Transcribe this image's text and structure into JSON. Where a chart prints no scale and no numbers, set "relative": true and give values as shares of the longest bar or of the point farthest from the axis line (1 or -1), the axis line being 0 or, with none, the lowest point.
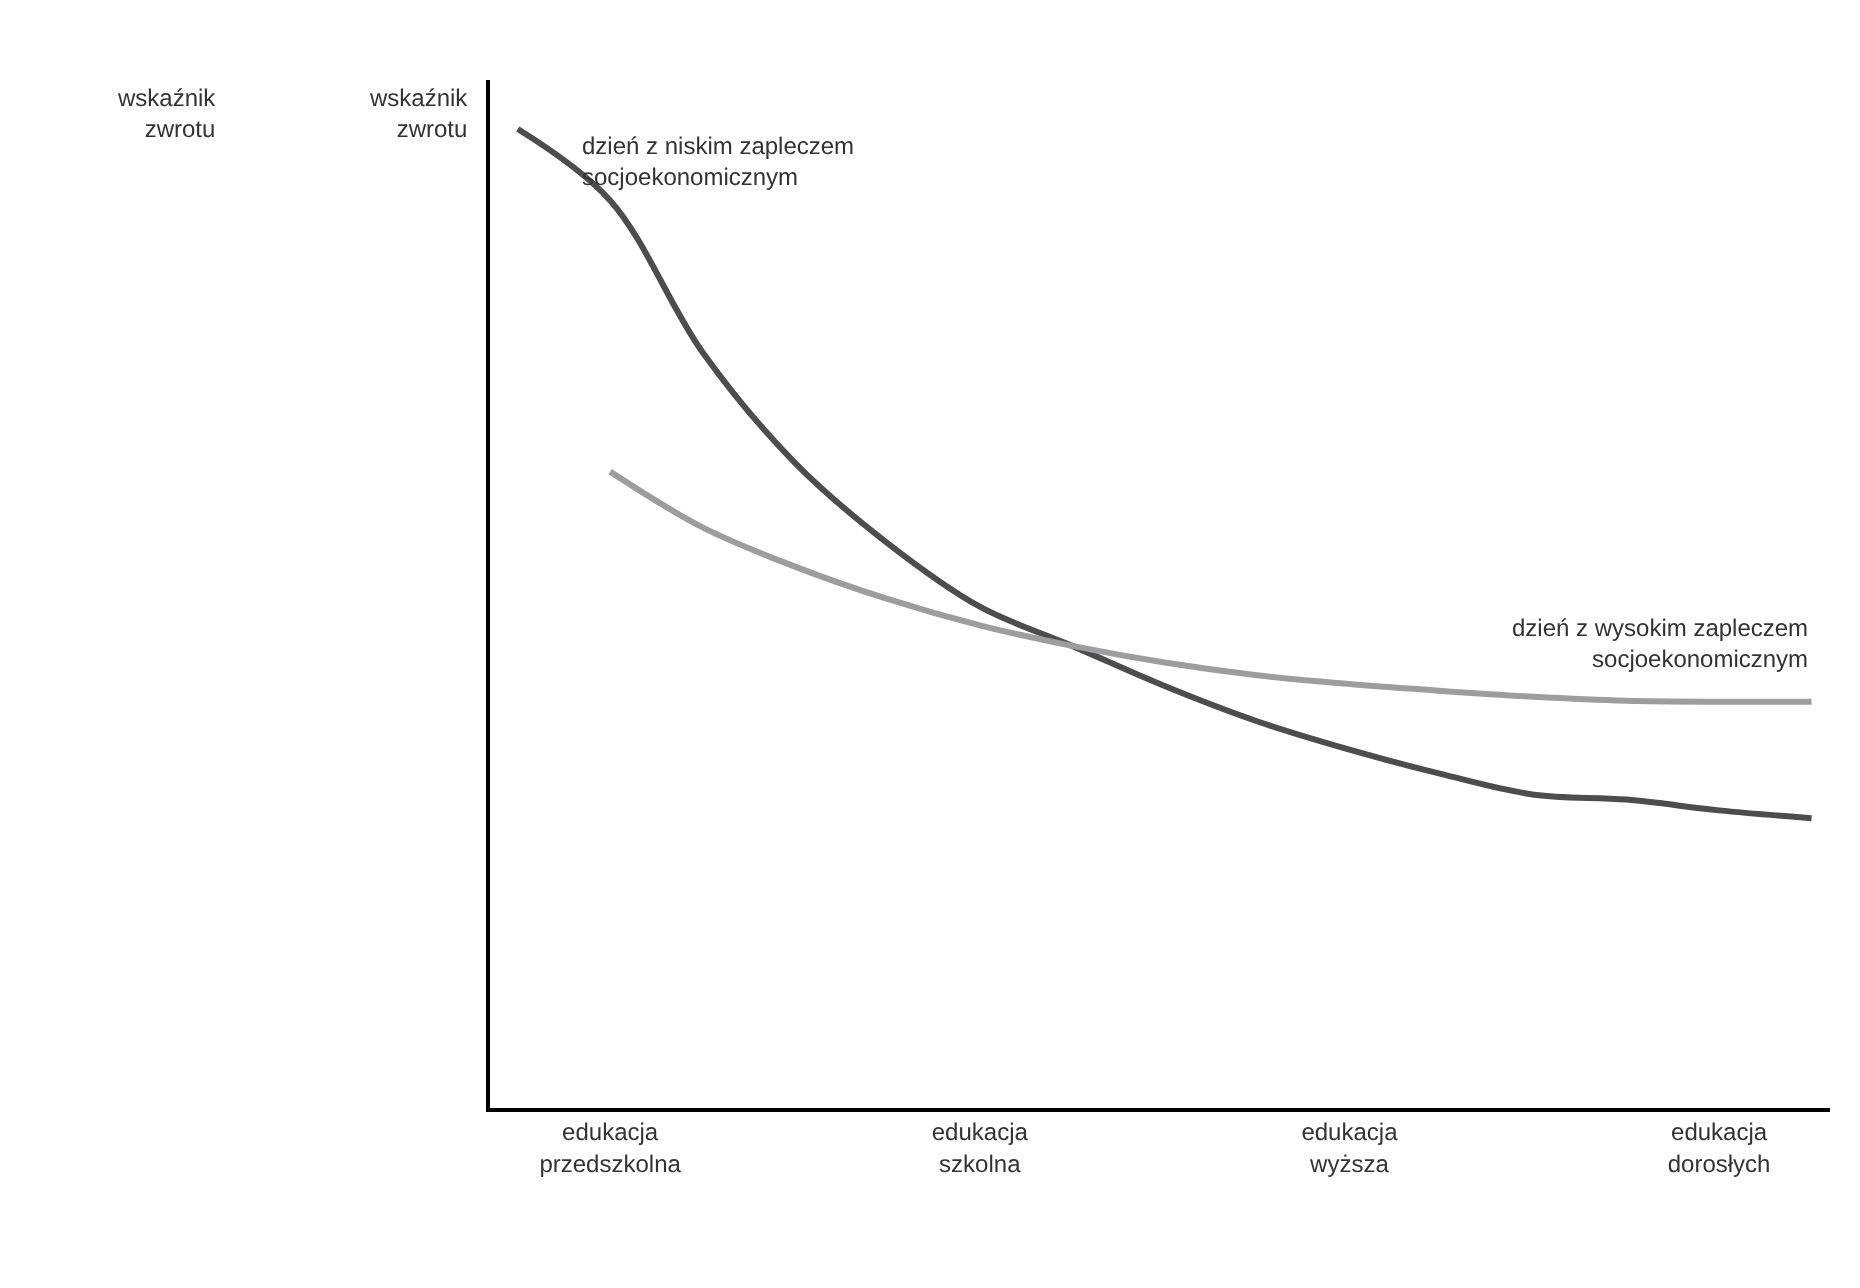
{
  "chart_data": {
    "type": "line",
    "relative": true,
    "ylabel": "wskaźnik\nzwrotu",
    "categories": [
      null,
      "edukacja\nprzedszkolna",
      null,
      null,
      null,
      "edukacja\nszkolna",
      null,
      null,
      null,
      "edukacja\nwyższa",
      null,
      null,
      null,
      "edukacja\ndorosłych",
      null
    ],
    "series": [
      {
        "name": "dzień z niskim zapleczem\nsocjoekonomicznym",
        "color": "#4d4d4f",
        "values": [
          1,
          0.927,
          0.772,
          0.659,
          0.577,
          0.512,
          0.472,
          0.431,
          0.395,
          0.366,
          0.341,
          0.32,
          0.315,
          0.304,
          0.296
        ]
      },
      {
        "name": "dzień z wysokim zapleczem\nsocjoekonomicznym",
        "color": "#9d9d9f",
        "values": [
          null,
          0.65,
          0.593,
          0.553,
          0.52,
          0.493,
          0.472,
          0.455,
          0.442,
          0.433,
          0.426,
          0.42,
          0.416,
          0.415,
          0.415
        ]
      }
    ],
    "annotations": [
      "wskaźnik\nzwrotu"
    ],
    "legend": false
  }
}
